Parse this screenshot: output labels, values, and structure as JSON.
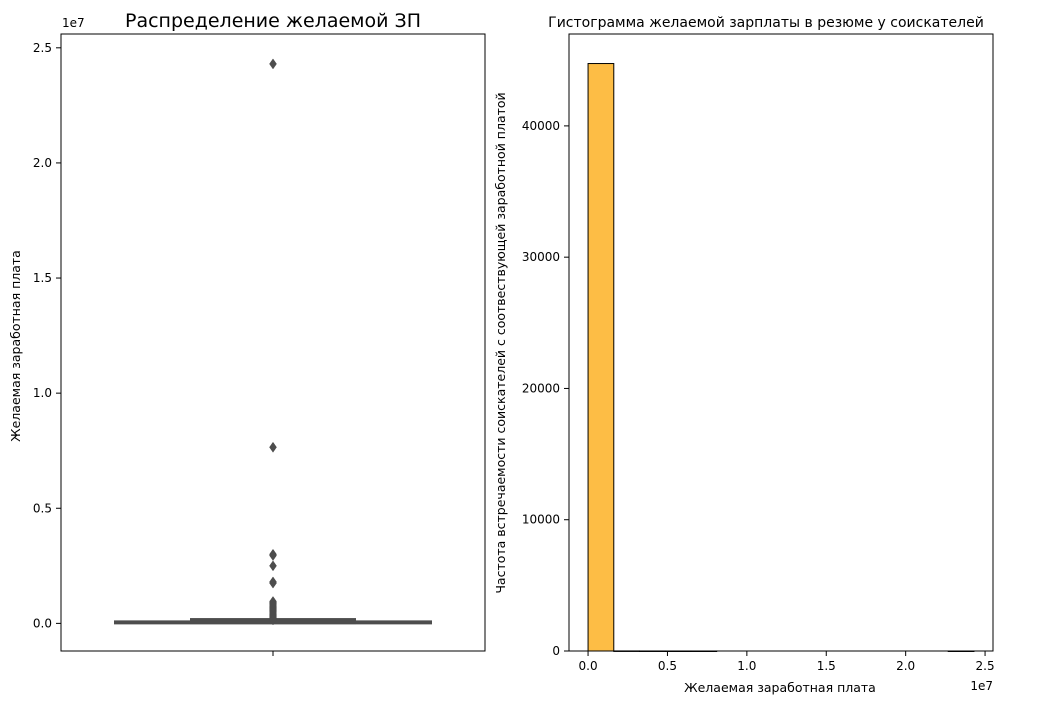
{
  "chart_data": [
    {
      "type": "box",
      "title": "Распределение желаемой ЗП",
      "xlabel": "",
      "ylabel": "Желаемая заработная плата",
      "offset_text": "1e7",
      "ylim": [
        -1200000,
        25600000
      ],
      "yticks": [
        0,
        5000000,
        10000000,
        15000000,
        20000000,
        25000000
      ],
      "ytick_labels": [
        "0.0",
        "0.5",
        "1.0",
        "1.5",
        "2.0",
        "2.5"
      ],
      "box": {
        "q1": 20000,
        "median": 40000,
        "q3": 100000,
        "whisker_low": 0,
        "whisker_high": 120000
      },
      "outliers": [
        24300000,
        7650000,
        3000000,
        2950000,
        2500000,
        1800000,
        1750000,
        950000,
        900000,
        850000,
        800000,
        750000,
        700000,
        650000,
        600000,
        550000,
        500000,
        450000,
        400000,
        350000,
        300000,
        260000,
        220000,
        180000,
        150000
      ],
      "color": "#4d4d4d",
      "grid": false
    },
    {
      "type": "histogram",
      "title": "Гистограмма желаемой зарплаты в резюме у соискателей",
      "xlabel": "Желаемая заработная плата",
      "ylabel": "Частота встречаемости соискателей с соотвествующей заработной платой",
      "offset_text": "1e7",
      "bins": {
        "start": 0,
        "width": 1620000,
        "count": 15
      },
      "counts": [
        44750,
        5,
        2,
        1,
        1,
        0,
        0,
        0,
        0,
        0,
        0,
        0,
        0,
        0,
        1
      ],
      "xlim": [
        -1200000,
        25500000
      ],
      "ylim": [
        0,
        47000
      ],
      "xticks": [
        0,
        5000000,
        10000000,
        15000000,
        20000000,
        25000000
      ],
      "xtick_labels": [
        "0.0",
        "0.5",
        "1.0",
        "1.5",
        "2.0",
        "2.5"
      ],
      "yticks": [
        0,
        10000,
        20000,
        30000,
        40000
      ],
      "ytick_labels": [
        "0",
        "10000",
        "20000",
        "30000",
        "40000"
      ],
      "color": "#fdb93b",
      "edgecolor": "#000000",
      "grid": false
    }
  ]
}
